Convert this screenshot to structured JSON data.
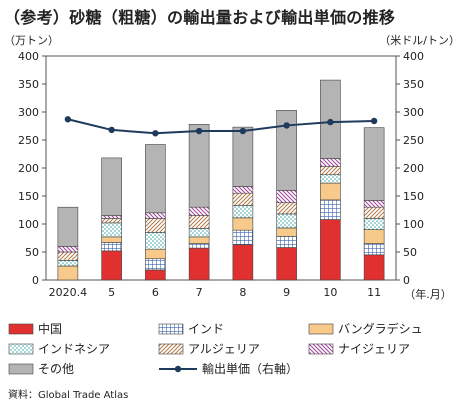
{
  "title": "（参考）砂糖（粗糖）の輸出量および輸出単価の推移",
  "source": "資料：Global Trade Atlas",
  "chart_data": {
    "type": "bar",
    "stacked": true,
    "categories": [
      "2020.4",
      "5",
      "6",
      "7",
      "8",
      "9",
      "10",
      "11"
    ],
    "x_unit_label": "（年.月）",
    "y_left_unit": "（万トン）",
    "y_right_unit": "（米ドル/トン）",
    "ylim": [
      0,
      400
    ],
    "y_ticks": [
      0,
      50,
      100,
      150,
      200,
      250,
      300,
      350,
      400
    ],
    "series": [
      {
        "name": "中国",
        "color": "#e03030",
        "pattern": "solid",
        "values": [
          0,
          52,
          18,
          57,
          63,
          58,
          108,
          45
        ]
      },
      {
        "name": "インド",
        "color": "#5a7fc0",
        "pattern": "grid",
        "values": [
          0,
          15,
          20,
          8,
          26,
          20,
          35,
          20
        ]
      },
      {
        "name": "バングラデシュ",
        "color": "#f7c98a",
        "pattern": "solid",
        "values": [
          25,
          10,
          17,
          12,
          22,
          15,
          30,
          25
        ]
      },
      {
        "name": "インドネシア",
        "color": "#6fbec0",
        "pattern": "dots",
        "values": [
          10,
          25,
          30,
          15,
          22,
          25,
          15,
          20
        ]
      },
      {
        "name": "アルジェリア",
        "color": "#c8956a",
        "pattern": "diagonal",
        "values": [
          15,
          8,
          25,
          23,
          22,
          20,
          15,
          20
        ]
      },
      {
        "name": "ナイジェリア",
        "color": "#b050a0",
        "pattern": "backdiag",
        "values": [
          10,
          5,
          10,
          15,
          12,
          22,
          14,
          12
        ]
      },
      {
        "name": "その他",
        "color": "#b4b4b4",
        "pattern": "solid",
        "values": [
          70,
          103,
          122,
          148,
          106,
          143,
          140,
          130
        ]
      }
    ],
    "line_series": {
      "name": "輸出単価（右軸）",
      "color": "#1f3b5c",
      "axis": "right",
      "values": [
        287,
        268,
        262,
        266,
        266,
        276,
        282,
        284
      ]
    },
    "grid": false,
    "legend_position": "bottom"
  }
}
